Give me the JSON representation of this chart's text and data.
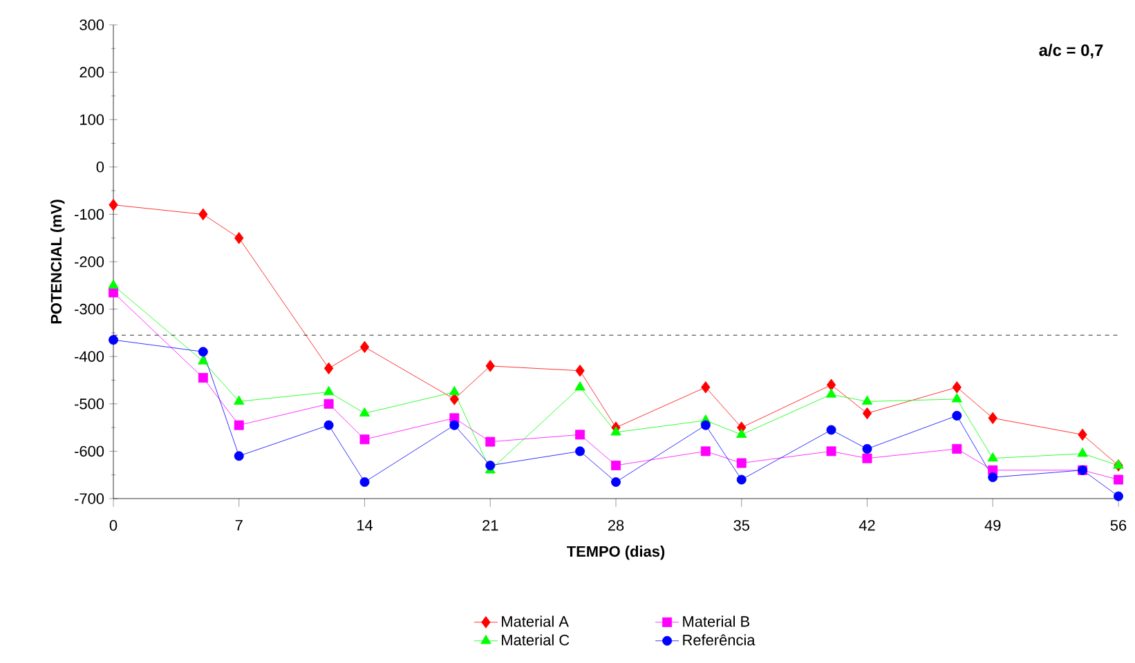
{
  "chart_data": {
    "type": "line",
    "xlabel": "TEMPO (dias)",
    "ylabel": "POTENCIAL (mV)",
    "x": [
      0,
      5,
      7,
      12,
      14,
      19,
      21,
      26,
      28,
      33,
      35,
      40,
      42,
      47,
      49,
      54,
      56
    ],
    "xlim": [
      0,
      56
    ],
    "xticks": [
      0,
      7,
      14,
      21,
      28,
      35,
      42,
      49,
      56
    ],
    "ylim": [
      -700,
      300
    ],
    "yticks": [
      -700,
      -600,
      -500,
      -400,
      -300,
      -200,
      -100,
      0,
      100,
      200,
      300
    ],
    "grid": false,
    "legend": "bottom",
    "line_style": "solid",
    "series": [
      {
        "name": "Material A",
        "color": "#ff0000",
        "marker": "diamond",
        "values": [
          -80,
          -100,
          -150,
          -425,
          -380,
          -490,
          -420,
          -430,
          -550,
          -465,
          -550,
          -460,
          -520,
          -465,
          -530,
          -565,
          -630
        ]
      },
      {
        "name": "Material B",
        "color": "#ff00ff",
        "marker": "square",
        "values": [
          -265,
          -445,
          -545,
          -500,
          -575,
          -530,
          -580,
          -565,
          -630,
          -600,
          -625,
          -600,
          -615,
          -595,
          -640,
          -640,
          -660
        ]
      },
      {
        "name": "Material C",
        "color": "#00ff00",
        "marker": "triangle",
        "values": [
          -250,
          -410,
          -495,
          -475,
          -520,
          -475,
          -640,
          -465,
          -560,
          -535,
          -565,
          -480,
          -495,
          -490,
          -615,
          -605,
          -630
        ]
      },
      {
        "name": "Referência",
        "color": "#0000ff",
        "marker": "circle",
        "values": [
          -365,
          -390,
          -610,
          -545,
          -665,
          -545,
          -630,
          -600,
          -665,
          -545,
          -660,
          -555,
          -595,
          -525,
          -655,
          -640,
          -695
        ]
      }
    ],
    "ref_lines": [
      {
        "axis": "y",
        "value": -355,
        "color": "#000000",
        "line_style": "dashed"
      }
    ],
    "annotations": [
      "a/c = 0,7"
    ]
  }
}
